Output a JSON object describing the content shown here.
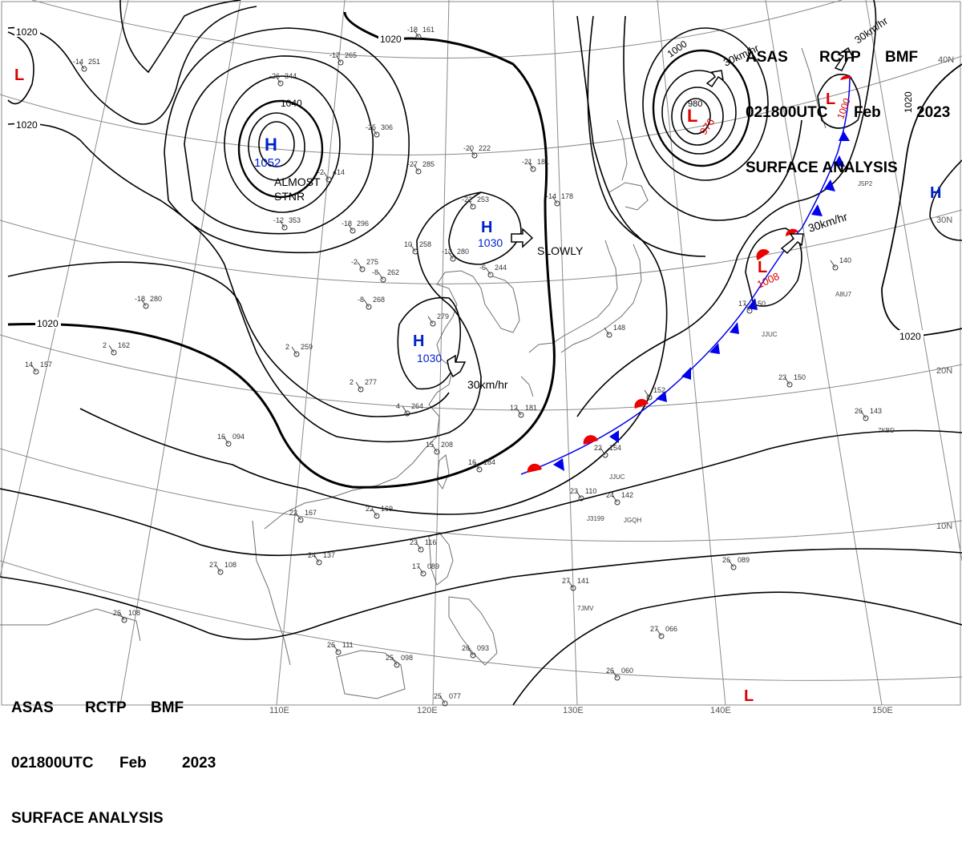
{
  "header": {
    "line1": {
      "a": "ASAS",
      "b": "RCTP",
      "c": "BMF"
    },
    "line2": {
      "a": "021800UTC",
      "b": "Feb",
      "c": "2023"
    },
    "line3": "SURFACE ANALYSIS"
  },
  "lon_labels": [
    "110E",
    "120E",
    "130E",
    "140E",
    "150E"
  ],
  "lat_labels": [
    "10N",
    "20N",
    "30N",
    "40N"
  ],
  "isobar_labels": [
    "1020",
    "1020",
    "1020",
    "1020",
    "1020",
    "1020",
    "1040",
    "1000",
    "980"
  ],
  "systems": [
    {
      "type": "H",
      "pressure": "1052",
      "note": "ALMOST STNR"
    },
    {
      "type": "H",
      "pressure": "1030",
      "motion": "SLOWLY"
    },
    {
      "type": "H",
      "pressure": "1030",
      "motion": "30km/hr"
    },
    {
      "type": "L",
      "pressure": "976",
      "motion": "30km/hr"
    },
    {
      "type": "L",
      "pressure": "1008",
      "motion": "30km/hr"
    },
    {
      "type": "L",
      "pressure": "1000",
      "motion": "30km/hr"
    },
    {
      "type": "H",
      "pressure": ""
    },
    {
      "type": "L",
      "pressure": ""
    },
    {
      "type": "L",
      "pressure": ""
    }
  ],
  "station_plots": [
    {
      "t": "-18",
      "p": "161"
    },
    {
      "t": "-14",
      "p": "251"
    },
    {
      "t": "-17",
      "p": "265"
    },
    {
      "t": "-26",
      "p": "344"
    },
    {
      "t": "-25",
      "p": "306"
    },
    {
      "t": "-27",
      "p": "285"
    },
    {
      "t": "-20",
      "p": "222"
    },
    {
      "t": "-21",
      "p": "181"
    },
    {
      "t": "-2",
      "p": "414"
    },
    {
      "t": "-12",
      "p": "353"
    },
    {
      "t": "-18",
      "p": "296"
    },
    {
      "t": "10",
      "p": "258"
    },
    {
      "t": "-22",
      "p": "253"
    },
    {
      "t": "-14",
      "p": "178"
    },
    {
      "t": "-13",
      "p": "280"
    },
    {
      "t": "-18",
      "p": "280"
    },
    {
      "t": "-8",
      "p": "268"
    },
    {
      "t": "-8",
      "p": "262"
    },
    {
      "t": "2",
      "p": "259"
    },
    {
      "t": "2",
      "p": "277"
    },
    {
      "t": "4",
      "p": "264"
    },
    {
      "t": "16",
      "p": "094"
    },
    {
      "t": "15",
      "p": "208"
    },
    {
      "t": "16",
      "p": "184"
    },
    {
      "t": "22",
      "p": "169"
    },
    {
      "t": "22",
      "p": "167"
    },
    {
      "t": "24",
      "p": "137"
    },
    {
      "t": "27",
      "p": "108"
    },
    {
      "t": "26",
      "p": "108"
    },
    {
      "t": "26",
      "p": "111"
    },
    {
      "t": "25",
      "p": "098"
    },
    {
      "t": "25",
      "p": "077"
    },
    {
      "t": "26",
      "p": "093"
    },
    {
      "t": "23",
      "p": "116"
    },
    {
      "t": "17",
      "p": "089"
    },
    {
      "t": "22",
      "p": "154"
    },
    {
      "t": "23",
      "p": "110"
    },
    {
      "t": "24",
      "p": "142"
    },
    {
      "t": "17",
      "p": "150"
    },
    {
      "t": "23",
      "p": "150"
    },
    {
      "t": "26",
      "p": "143"
    },
    {
      "t": "26",
      "p": "089"
    },
    {
      "t": "27",
      "p": "141"
    },
    {
      "t": "27",
      "p": "066"
    },
    {
      "t": "26",
      "p": "060"
    },
    {
      "t": "14",
      "p": "157"
    },
    {
      "t": "2",
      "p": "162"
    },
    {
      "t": "12",
      "p": "181"
    },
    {
      "t": "-2",
      "p": "275"
    },
    {
      "t": "-6",
      "p": "244"
    },
    {
      "t": "",
      "p": "279"
    },
    {
      "t": "",
      "p": "152"
    },
    {
      "t": "",
      "p": "148"
    },
    {
      "t": "",
      "p": "140"
    }
  ],
  "ship_ids": [
    "JJUC",
    "JJUC",
    "J3199",
    "JGQH",
    "7KBD",
    "7JMV",
    "A8U7",
    "J5P2"
  ],
  "colors": {
    "isobar": "#000000",
    "grid": "#888888",
    "coast": "#777777",
    "high": "#0022cc",
    "low": "#dd0000",
    "cold_front": "#0000ee",
    "warm_front": "#ee0000"
  }
}
